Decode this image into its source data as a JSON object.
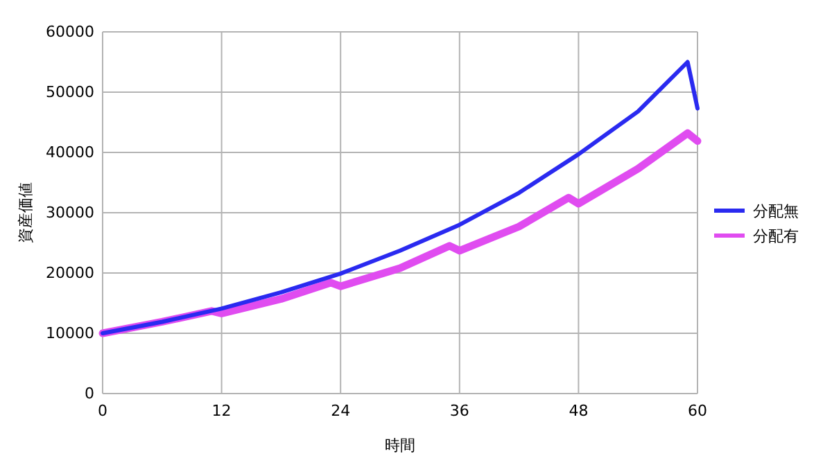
{
  "chart_data": {
    "type": "line",
    "xlabel": "時間",
    "ylabel": "資産価値",
    "xlim": [
      0,
      60
    ],
    "xticks": [
      0,
      12,
      24,
      36,
      48,
      60
    ],
    "ylim": [
      0,
      60000
    ],
    "yticks": [
      0,
      10000,
      20000,
      30000,
      40000,
      50000,
      60000
    ],
    "grid": true,
    "legend": "right",
    "marker": "none",
    "line_style": "solid",
    "series": [
      {
        "name": "分配無",
        "color": "#2a2af0",
        "x": [
          0,
          6,
          12,
          18,
          24,
          30,
          36,
          42,
          48,
          54,
          59,
          60
        ],
        "values": [
          10000,
          11900,
          14100,
          16800,
          19900,
          23700,
          28000,
          33300,
          39700,
          46800,
          55000,
          47300
        ]
      },
      {
        "name": "分配有",
        "color": "#e04cf0",
        "x": [
          0,
          6,
          11,
          12,
          18,
          23,
          24,
          30,
          35,
          36,
          42,
          47,
          48,
          54,
          59,
          60
        ],
        "values": [
          10000,
          11900,
          13700,
          13300,
          15700,
          18400,
          17800,
          20800,
          24500,
          23700,
          27700,
          32500,
          31500,
          37300,
          43200,
          41900
        ]
      }
    ]
  }
}
